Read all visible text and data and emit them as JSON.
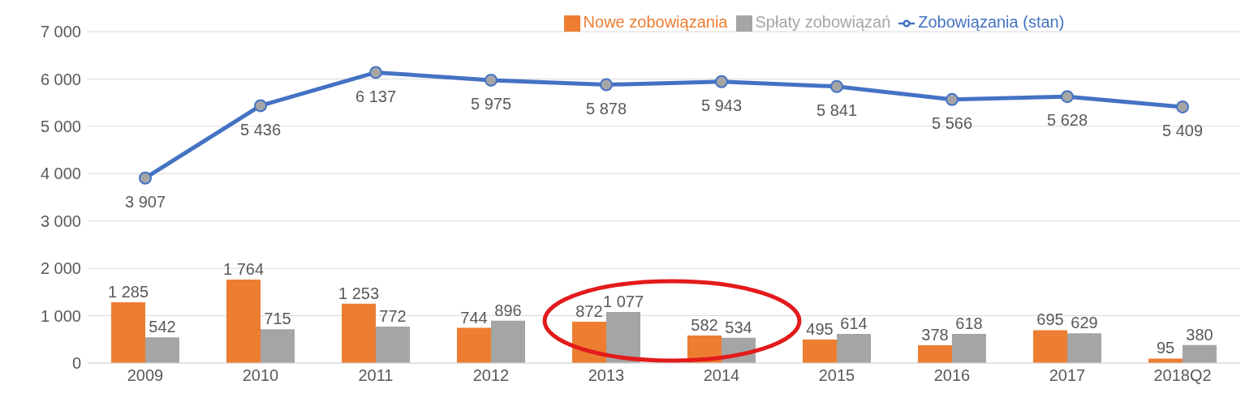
{
  "chart_data": {
    "type": "bar",
    "categories": [
      "2009",
      "2010",
      "2011",
      "2012",
      "2013",
      "2014",
      "2015",
      "2016",
      "2017",
      "2018Q2"
    ],
    "series": [
      {
        "name": "Nowe zobowiązania",
        "color": "#ed7d31",
        "values": [
          1285,
          1764,
          1253,
          744,
          872,
          582,
          495,
          378,
          695,
          95
        ],
        "value_labels": [
          "1 285",
          "1 764",
          "1 253",
          "744",
          "872",
          "582",
          "495",
          "378",
          "695",
          "95"
        ]
      },
      {
        "name": "Spłaty zobowiązań",
        "color": "#a5a5a5",
        "values": [
          542,
          715,
          772,
          896,
          1077,
          534,
          614,
          618,
          629,
          380
        ],
        "value_labels": [
          "542",
          "715",
          "772",
          "896",
          "1 077",
          "534",
          "614",
          "618",
          "629",
          "380"
        ]
      },
      {
        "name": "Zobowiązania (stan)",
        "type": "line",
        "color": "#4472c4",
        "marker": "circle",
        "values": [
          3907,
          5436,
          6137,
          5975,
          5878,
          5943,
          5841,
          5566,
          5628,
          5409
        ],
        "value_labels": [
          "3 907",
          "5 436",
          "6 137",
          "5 975",
          "5 878",
          "5 943",
          "5 841",
          "5 566",
          "5 628",
          "5 409"
        ]
      }
    ],
    "ylim": [
      0,
      7000
    ],
    "yticks": [
      {
        "value": 0,
        "label": "0"
      },
      {
        "value": 1000,
        "label": "1 000"
      },
      {
        "value": 2000,
        "label": "2 000"
      },
      {
        "value": 3000,
        "label": "3 000"
      },
      {
        "value": 4000,
        "label": "4 000"
      },
      {
        "value": 5000,
        "label": "5 000"
      },
      {
        "value": 6000,
        "label": "6 000"
      },
      {
        "value": 7000,
        "label": "7 000"
      }
    ],
    "grid": "y",
    "legend": "top"
  }
}
